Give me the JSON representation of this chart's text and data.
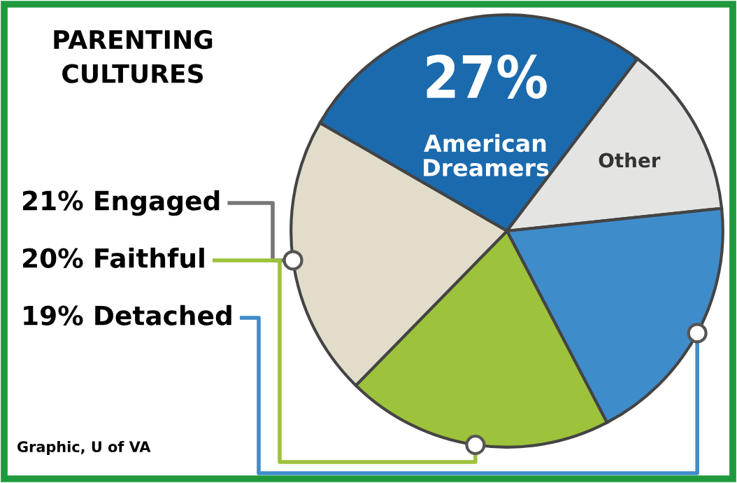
{
  "chart_data": {
    "type": "pie",
    "title": "PARENTING\nCULTURES",
    "categories": [
      "American Dreamers",
      "Other",
      "Detached",
      "Faithful",
      "Engaged"
    ],
    "values": [
      27,
      13,
      19,
      20,
      21
    ],
    "value_labels": [
      "27%",
      null,
      "19%",
      "20%",
      "21%"
    ],
    "colors": [
      "#1b6aad",
      "#e4e4e2",
      "#3f8ccb",
      "#9dc23b",
      "#e2ddcb"
    ],
    "annotations": [
      "Graphic, U of VA"
    ],
    "legend": false
  }
}
